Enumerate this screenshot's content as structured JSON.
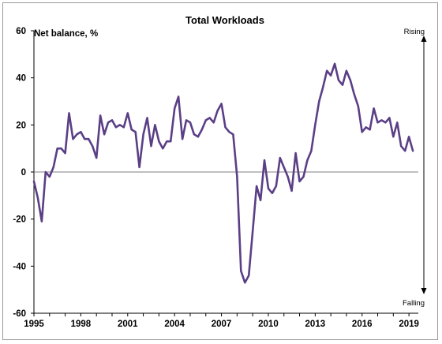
{
  "chart_data": {
    "type": "line",
    "title": "Total Workloads",
    "ylabel": "Net balance, %",
    "xlabel": "",
    "ylim": [
      -60,
      60
    ],
    "xlim": [
      1995,
      2019.6
    ],
    "grid": false,
    "yticks": [
      60,
      40,
      20,
      0,
      -20,
      -40,
      -60
    ],
    "ytick_labels": [
      "60",
      "40",
      "20",
      "0",
      "-20",
      "-40",
      "-60"
    ],
    "xticks": [
      1995,
      1998,
      2001,
      2004,
      2007,
      2010,
      2013,
      2016,
      2019
    ],
    "xtick_labels": [
      "1995",
      "1998",
      "2001",
      "2004",
      "2007",
      "2010",
      "2013",
      "2016",
      "2019"
    ],
    "annotations": {
      "top_right": "Rising",
      "bottom_right": "Falling"
    },
    "line_color": "#5b3f86",
    "series": [
      {
        "name": "",
        "x_start": 1995,
        "x_step": 0.25,
        "values": [
          -4,
          -11,
          -21,
          0,
          -2,
          2,
          10,
          10,
          8,
          25,
          14,
          16,
          17,
          14,
          14,
          11,
          6,
          24,
          16,
          21,
          22,
          19,
          20,
          19,
          25,
          18,
          17,
          2,
          16,
          23,
          11,
          20,
          13,
          10,
          13,
          13,
          27,
          32,
          14,
          22,
          21,
          16,
          15,
          18,
          22,
          23,
          21,
          26,
          29,
          19,
          17,
          16,
          -2,
          -42,
          -47,
          -44,
          -25,
          -6,
          -12,
          5,
          -7,
          -9,
          -6,
          6,
          2,
          -2,
          -8,
          8,
          -4,
          -2,
          5,
          9,
          20,
          30,
          36,
          43,
          41,
          46,
          39,
          37,
          43,
          39,
          33,
          28,
          17,
          19,
          18,
          27,
          21,
          22,
          21,
          23,
          15,
          21,
          11,
          9,
          15,
          9
        ]
      }
    ]
  }
}
